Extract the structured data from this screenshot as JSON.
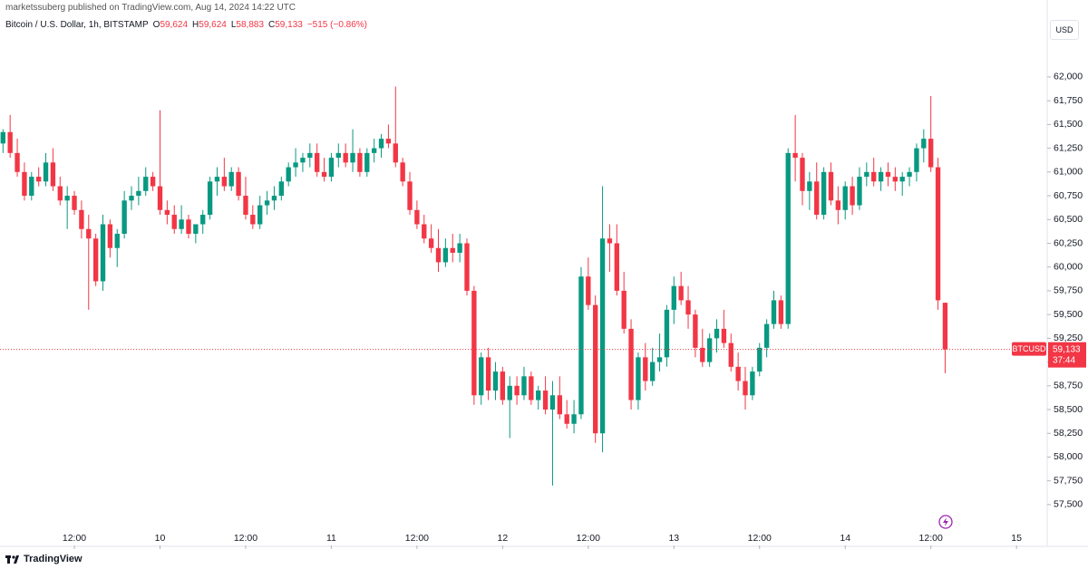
{
  "header": "marketssuberg published on TradingView.com, Aug 14, 2024 14:22 UTC",
  "footer": "TradingView",
  "chart_data": {
    "type": "candlestick",
    "symbol": "Bitcoin / U.S. Dollar, 1h, BITSTAMP",
    "legend": [
      {
        "key": "O",
        "value": "59,624"
      },
      {
        "key": "H",
        "value": "59,624"
      },
      {
        "key": "L",
        "value": "58,883"
      },
      {
        "key": "C",
        "value": "59,133"
      }
    ],
    "change": "−515 (−0.86%)",
    "currency": "USD",
    "up_color": "#089981",
    "down_color": "#f23645",
    "grid": false,
    "last_price_tag": {
      "symbol": "BTCUSD",
      "price": "59,133",
      "countdown": "37:44"
    },
    "ylim": [
      57070,
      62810
    ],
    "yticks": [
      {
        "value": 57500,
        "label": "57,500"
      },
      {
        "value": 57750,
        "label": "57,750"
      },
      {
        "value": 58000,
        "label": "58,000"
      },
      {
        "value": 58250,
        "label": "58,250"
      },
      {
        "value": 58500,
        "label": "58,500"
      },
      {
        "value": 58750,
        "label": "58,750"
      },
      {
        "value": 59000,
        "label": "59,000"
      },
      {
        "value": 59250,
        "label": "59,250"
      },
      {
        "value": 59500,
        "label": "59,500"
      },
      {
        "value": 59750,
        "label": "59,750"
      },
      {
        "value": 60000,
        "label": "60,000"
      },
      {
        "value": 60250,
        "label": "60,250"
      },
      {
        "value": 60500,
        "label": "60,500"
      },
      {
        "value": 60750,
        "label": "60,750"
      },
      {
        "value": 61000,
        "label": "61,000"
      },
      {
        "value": 61250,
        "label": "61,250"
      },
      {
        "value": 61500,
        "label": "61,500"
      },
      {
        "value": 61750,
        "label": "61,750"
      },
      {
        "value": 62000,
        "label": "62,000"
      }
    ],
    "xlim": [
      -0.42,
      146.3
    ],
    "xticks": [
      {
        "value": 10,
        "label": "12:00"
      },
      {
        "value": 22,
        "label": "10"
      },
      {
        "value": 34,
        "label": "12:00"
      },
      {
        "value": 46,
        "label": "11"
      },
      {
        "value": 58,
        "label": "12:00"
      },
      {
        "value": 70,
        "label": "12"
      },
      {
        "value": 82,
        "label": "12:00"
      },
      {
        "value": 94,
        "label": "13"
      },
      {
        "value": 106,
        "label": "12:00"
      },
      {
        "value": 118,
        "label": "14"
      },
      {
        "value": 130,
        "label": "12:00"
      },
      {
        "value": 142,
        "label": "15"
      }
    ],
    "ohlc": [
      [
        61300,
        61450,
        61200,
        61420
      ],
      [
        61420,
        61600,
        61150,
        61200
      ],
      [
        61200,
        61350,
        60950,
        61000
      ],
      [
        61000,
        61100,
        60700,
        60750
      ],
      [
        60750,
        61000,
        60700,
        60950
      ],
      [
        60950,
        61050,
        60850,
        60900
      ],
      [
        60900,
        61200,
        60850,
        61100
      ],
      [
        61100,
        61250,
        60800,
        60850
      ],
      [
        60850,
        60950,
        60650,
        60700
      ],
      [
        60700,
        60850,
        60400,
        60750
      ],
      [
        60750,
        60800,
        60550,
        60600
      ],
      [
        60600,
        60700,
        60300,
        60400
      ],
      [
        60400,
        60550,
        59550,
        60300
      ],
      [
        60300,
        60350,
        59800,
        59850
      ],
      [
        59850,
        60550,
        59750,
        60450
      ],
      [
        60450,
        60500,
        60100,
        60200
      ],
      [
        60200,
        60400,
        60000,
        60350
      ],
      [
        60350,
        60800,
        60300,
        60700
      ],
      [
        60700,
        60850,
        60600,
        60750
      ],
      [
        60750,
        60950,
        60650,
        60800
      ],
      [
        60800,
        61050,
        60750,
        60950
      ],
      [
        60950,
        61000,
        60800,
        60850
      ],
      [
        60850,
        61650,
        60550,
        60600
      ],
      [
        60600,
        60700,
        60450,
        60550
      ],
      [
        60550,
        60650,
        60350,
        60400
      ],
      [
        60400,
        60650,
        60350,
        60500
      ],
      [
        60500,
        60550,
        60300,
        60350
      ],
      [
        60350,
        60450,
        60250,
        60450
      ],
      [
        60450,
        60600,
        60350,
        60550
      ],
      [
        60550,
        60950,
        60500,
        60900
      ],
      [
        60900,
        61050,
        60750,
        60950
      ],
      [
        60950,
        61150,
        60800,
        60850
      ],
      [
        60850,
        61050,
        60800,
        61000
      ],
      [
        61000,
        61050,
        60700,
        60750
      ],
      [
        60750,
        60950,
        60500,
        60550
      ],
      [
        60550,
        60650,
        60400,
        60450
      ],
      [
        60450,
        60750,
        60400,
        60650
      ],
      [
        60650,
        60800,
        60550,
        60700
      ],
      [
        60700,
        60850,
        60600,
        60750
      ],
      [
        60750,
        60950,
        60700,
        60900
      ],
      [
        60900,
        61100,
        60850,
        61050
      ],
      [
        61050,
        61250,
        60950,
        61100
      ],
      [
        61100,
        61200,
        61000,
        61150
      ],
      [
        61150,
        61300,
        61050,
        61200
      ],
      [
        61200,
        61300,
        60950,
        61000
      ],
      [
        61000,
        61150,
        60900,
        60950
      ],
      [
        60950,
        61200,
        60900,
        61150
      ],
      [
        61150,
        61300,
        61050,
        61200
      ],
      [
        61200,
        61300,
        61050,
        61100
      ],
      [
        61100,
        61450,
        61000,
        61200
      ],
      [
        61200,
        61250,
        60950,
        61000
      ],
      [
        61000,
        61250,
        60950,
        61200
      ],
      [
        61200,
        61350,
        61100,
        61250
      ],
      [
        61250,
        61400,
        61150,
        61350
      ],
      [
        61350,
        61500,
        61250,
        61300
      ],
      [
        61300,
        61900,
        61050,
        61100
      ],
      [
        61100,
        61150,
        60850,
        60900
      ],
      [
        60900,
        61000,
        60550,
        60600
      ],
      [
        60600,
        60700,
        60400,
        60450
      ],
      [
        60450,
        60550,
        60250,
        60300
      ],
      [
        60300,
        60450,
        60150,
        60200
      ],
      [
        60200,
        60400,
        59950,
        60050
      ],
      [
        60050,
        60300,
        60000,
        60200
      ],
      [
        60200,
        60350,
        60050,
        60150
      ],
      [
        60150,
        60350,
        60050,
        60250
      ],
      [
        60250,
        60300,
        59700,
        59750
      ],
      [
        59750,
        59800,
        58550,
        58650
      ],
      [
        58650,
        59100,
        58550,
        59050
      ],
      [
        59050,
        59150,
        58600,
        58700
      ],
      [
        58700,
        59000,
        58600,
        58900
      ],
      [
        58900,
        58950,
        58550,
        58600
      ],
      [
        58600,
        58850,
        58200,
        58750
      ],
      [
        58750,
        58850,
        58550,
        58650
      ],
      [
        58650,
        58950,
        58600,
        58850
      ],
      [
        58850,
        58900,
        58550,
        58600
      ],
      [
        58600,
        58750,
        58500,
        58700
      ],
      [
        58700,
        58850,
        58450,
        58500
      ],
      [
        58500,
        58800,
        57700,
        58650
      ],
      [
        58650,
        58850,
        58400,
        58450
      ],
      [
        58450,
        58600,
        58300,
        58350
      ],
      [
        58350,
        58600,
        58250,
        58450
      ],
      [
        58450,
        60000,
        58400,
        59900
      ],
      [
        59900,
        60100,
        59550,
        59600
      ],
      [
        59600,
        59700,
        58150,
        58250
      ],
      [
        58250,
        60850,
        58050,
        60300
      ],
      [
        60300,
        60450,
        59950,
        60250
      ],
      [
        60250,
        60450,
        59700,
        59750
      ],
      [
        59750,
        59950,
        59300,
        59350
      ],
      [
        59350,
        59450,
        58500,
        58600
      ],
      [
        58600,
        59100,
        58500,
        59050
      ],
      [
        59050,
        59200,
        58700,
        58800
      ],
      [
        58800,
        59150,
        58750,
        59000
      ],
      [
        59000,
        59300,
        58900,
        59050
      ],
      [
        59050,
        59600,
        58950,
        59550
      ],
      [
        59550,
        59900,
        59400,
        59800
      ],
      [
        59800,
        59950,
        59600,
        59650
      ],
      [
        59650,
        59800,
        59350,
        59500
      ],
      [
        59500,
        59550,
        59050,
        59150
      ],
      [
        59150,
        59350,
        58950,
        59000
      ],
      [
        59000,
        59300,
        58950,
        59250
      ],
      [
        59250,
        59450,
        59100,
        59350
      ],
      [
        59350,
        59550,
        59150,
        59200
      ],
      [
        59200,
        59300,
        58900,
        58950
      ],
      [
        58950,
        59100,
        58700,
        58800
      ],
      [
        58800,
        58950,
        58500,
        58650
      ],
      [
        58650,
        58950,
        58600,
        58900
      ],
      [
        58900,
        59200,
        58850,
        59150
      ],
      [
        59150,
        59450,
        59050,
        59400
      ],
      [
        59400,
        59750,
        59350,
        59650
      ],
      [
        59650,
        59700,
        59350,
        59400
      ],
      [
        59400,
        61250,
        59350,
        61200
      ],
      [
        61200,
        61600,
        60900,
        61150
      ],
      [
        61150,
        61200,
        60650,
        60800
      ],
      [
        60800,
        61000,
        60600,
        60900
      ],
      [
        60900,
        61100,
        60500,
        60550
      ],
      [
        60550,
        61050,
        60500,
        61000
      ],
      [
        61000,
        61100,
        60650,
        60700
      ],
      [
        60700,
        60850,
        60450,
        60600
      ],
      [
        60600,
        60900,
        60500,
        60850
      ],
      [
        60850,
        60950,
        60550,
        60650
      ],
      [
        60650,
        61050,
        60600,
        60950
      ],
      [
        60950,
        61100,
        60850,
        61000
      ],
      [
        61000,
        61150,
        60850,
        60900
      ],
      [
        60900,
        61050,
        60800,
        61000
      ],
      [
        61000,
        61100,
        60850,
        60950
      ],
      [
        60950,
        61050,
        60800,
        60900
      ],
      [
        60900,
        61000,
        60750,
        60950
      ],
      [
        60950,
        61050,
        60850,
        61000
      ],
      [
        61000,
        61300,
        60900,
        61250
      ],
      [
        61250,
        61450,
        61100,
        61350
      ],
      [
        61350,
        61800,
        61000,
        61050
      ],
      [
        61050,
        61150,
        59550,
        59650
      ],
      [
        59624,
        59624,
        58883,
        59133
      ]
    ]
  }
}
